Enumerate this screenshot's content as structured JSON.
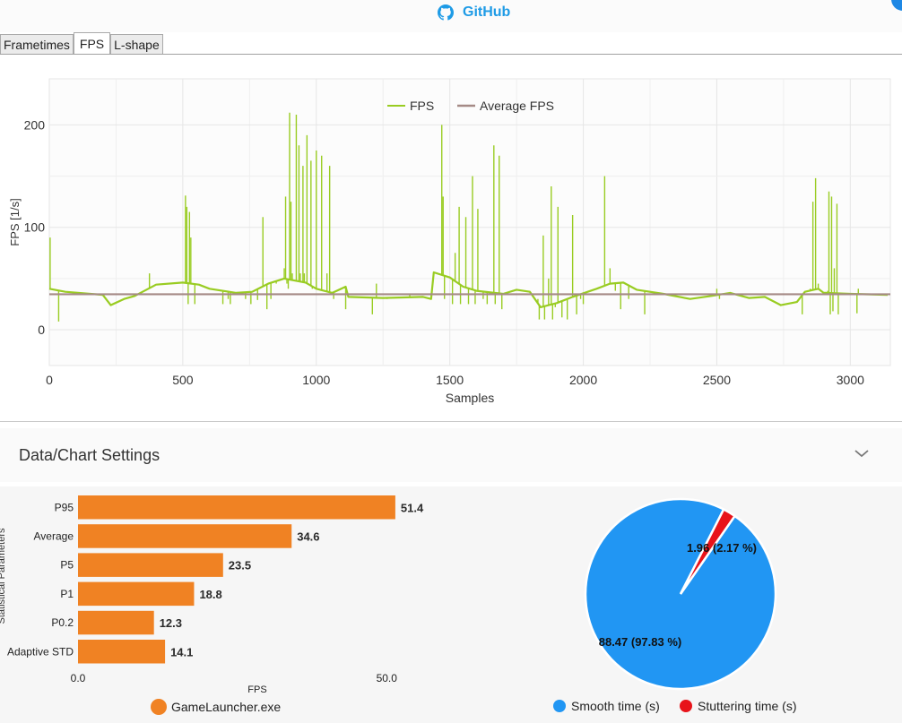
{
  "header": {
    "github_label": "GitHub"
  },
  "tabs": [
    {
      "label": "Frametimes",
      "active": false
    },
    {
      "label": "FPS",
      "active": true
    },
    {
      "label": "L-shape",
      "active": false
    }
  ],
  "settings": {
    "title": "Data/Chart Settings"
  },
  "chart_data": [
    {
      "type": "line",
      "title": "",
      "xlabel": "Samples",
      "ylabel": "FPS [1/s]",
      "xlim": [
        0,
        3150
      ],
      "ylim": [
        -35,
        245
      ],
      "xticks": [
        "0",
        "500",
        "1000",
        "1500",
        "2000",
        "2500",
        "3000"
      ],
      "yticks": [
        "0",
        "100",
        "200"
      ],
      "grid": true,
      "legend_position": "top-center",
      "series": [
        {
          "name": "FPS",
          "color": "#99cc22",
          "baseline": [
            [
              0,
              40
            ],
            [
              60,
              37
            ],
            [
              200,
              34
            ],
            [
              230,
              24
            ],
            [
              280,
              30
            ],
            [
              320,
              33
            ],
            [
              400,
              44
            ],
            [
              500,
              46
            ],
            [
              560,
              44
            ],
            [
              600,
              40
            ],
            [
              700,
              36
            ],
            [
              760,
              37
            ],
            [
              820,
              45
            ],
            [
              880,
              50
            ],
            [
              960,
              46
            ],
            [
              1000,
              40
            ],
            [
              1060,
              36
            ],
            [
              1110,
              42
            ],
            [
              1120,
              32
            ],
            [
              1250,
              31
            ],
            [
              1400,
              32
            ],
            [
              1430,
              30
            ],
            [
              1440,
              56
            ],
            [
              1500,
              51
            ],
            [
              1550,
              42
            ],
            [
              1600,
              38
            ],
            [
              1700,
              35
            ],
            [
              1750,
              39
            ],
            [
              1800,
              37
            ],
            [
              1840,
              22
            ],
            [
              1900,
              26
            ],
            [
              1960,
              32
            ],
            [
              2050,
              40
            ],
            [
              2100,
              45
            ],
            [
              2150,
              46
            ],
            [
              2200,
              39
            ],
            [
              2300,
              35
            ],
            [
              2400,
              30
            ],
            [
              2480,
              33
            ],
            [
              2550,
              36
            ],
            [
              2620,
              31
            ],
            [
              2680,
              32
            ],
            [
              2740,
              24
            ],
            [
              2800,
              27
            ],
            [
              2830,
              37
            ],
            [
              2880,
              40
            ],
            [
              2900,
              36
            ],
            [
              3000,
              35
            ],
            [
              3140,
              34
            ]
          ],
          "spikes": [
            [
              3,
              90
            ],
            [
              35,
              8
            ],
            [
              375,
              55
            ],
            [
              510,
              131
            ],
            [
              515,
              120
            ],
            [
              520,
              25
            ],
            [
              525,
              115
            ],
            [
              530,
              90
            ],
            [
              545,
              25
            ],
            [
              650,
              25
            ],
            [
              670,
              30
            ],
            [
              678,
              25
            ],
            [
              735,
              30
            ],
            [
              755,
              25
            ],
            [
              780,
              29
            ],
            [
              800,
              110
            ],
            [
              815,
              20
            ],
            [
              830,
              30
            ],
            [
              850,
              45
            ],
            [
              880,
              60
            ],
            [
              885,
              130
            ],
            [
              890,
              45
            ],
            [
              895,
              40
            ],
            [
              900,
              212
            ],
            [
              905,
              125
            ],
            [
              910,
              55
            ],
            [
              925,
              210
            ],
            [
              935,
              180
            ],
            [
              940,
              55
            ],
            [
              950,
              160
            ],
            [
              955,
              55
            ],
            [
              965,
              190
            ],
            [
              980,
              165
            ],
            [
              985,
              40
            ],
            [
              1000,
              175
            ],
            [
              1020,
              170
            ],
            [
              1040,
              55
            ],
            [
              1050,
              160
            ],
            [
              1065,
              30
            ],
            [
              1110,
              20
            ],
            [
              1210,
              15
            ],
            [
              1225,
              45
            ],
            [
              1265,
              30
            ],
            [
              1350,
              35
            ],
            [
              1470,
              200
            ],
            [
              1475,
              130
            ],
            [
              1480,
              30
            ],
            [
              1510,
              25
            ],
            [
              1520,
              75
            ],
            [
              1535,
              120
            ],
            [
              1540,
              25
            ],
            [
              1560,
              110
            ],
            [
              1570,
              25
            ],
            [
              1585,
              150
            ],
            [
              1595,
              25
            ],
            [
              1605,
              118
            ],
            [
              1625,
              30
            ],
            [
              1640,
              25
            ],
            [
              1665,
              180
            ],
            [
              1670,
              25
            ],
            [
              1685,
              170
            ],
            [
              1695,
              20
            ],
            [
              1830,
              30
            ],
            [
              1835,
              10
            ],
            [
              1850,
              92
            ],
            [
              1855,
              10
            ],
            [
              1870,
              50
            ],
            [
              1880,
              140
            ],
            [
              1885,
              10
            ],
            [
              1895,
              22
            ],
            [
              1905,
              120
            ],
            [
              1920,
              12
            ],
            [
              1940,
              10
            ],
            [
              1960,
              112
            ],
            [
              1975,
              15
            ],
            [
              1990,
              30
            ],
            [
              2000,
              25
            ],
            [
              2080,
              150
            ],
            [
              2100,
              60
            ],
            [
              2120,
              38
            ],
            [
              2140,
              20
            ],
            [
              2170,
              30
            ],
            [
              2230,
              15
            ],
            [
              2500,
              40
            ],
            [
              2510,
              30
            ],
            [
              2820,
              15
            ],
            [
              2850,
              40
            ],
            [
              2860,
              125
            ],
            [
              2870,
              148
            ],
            [
              2880,
              45
            ],
            [
              2905,
              37
            ],
            [
              2915,
              38
            ],
            [
              2920,
              135
            ],
            [
              2925,
              15
            ],
            [
              2930,
              130
            ],
            [
              2935,
              18
            ],
            [
              2940,
              60
            ],
            [
              2950,
              123
            ],
            [
              2955,
              15
            ],
            [
              3025,
              16
            ],
            [
              3030,
              40
            ]
          ]
        },
        {
          "name": "Average FPS",
          "color": "#a58a86",
          "value": 34.6
        }
      ]
    },
    {
      "type": "bar",
      "orientation": "horizontal",
      "categories": [
        "P95",
        "Average",
        "P5",
        "P1",
        "P0.2",
        "Adaptive STD"
      ],
      "values": [
        51.4,
        34.6,
        23.5,
        18.8,
        12.3,
        14.1
      ],
      "value_labels": [
        "51.4",
        "34.6",
        "23.5",
        "18.8",
        "12.3",
        "14.1"
      ],
      "xlabel": "FPS",
      "ylabel": "Statistical Parameters",
      "xticks": [
        "0.0",
        "50.0"
      ],
      "xlim": [
        0,
        61
      ],
      "legend": {
        "name": "GameLauncher.exe",
        "color": "#f08223"
      }
    },
    {
      "type": "pie",
      "slices": [
        {
          "name": "Smooth time (s)",
          "value": 88.47,
          "label": "88.47 (97.83 %)",
          "color": "#2196f3"
        },
        {
          "name": "Stuttering time (s)",
          "value": 1.96,
          "label": "1.96 (2.17 %)",
          "color": "#e8131a"
        }
      ],
      "legend_position": "bottom"
    }
  ]
}
